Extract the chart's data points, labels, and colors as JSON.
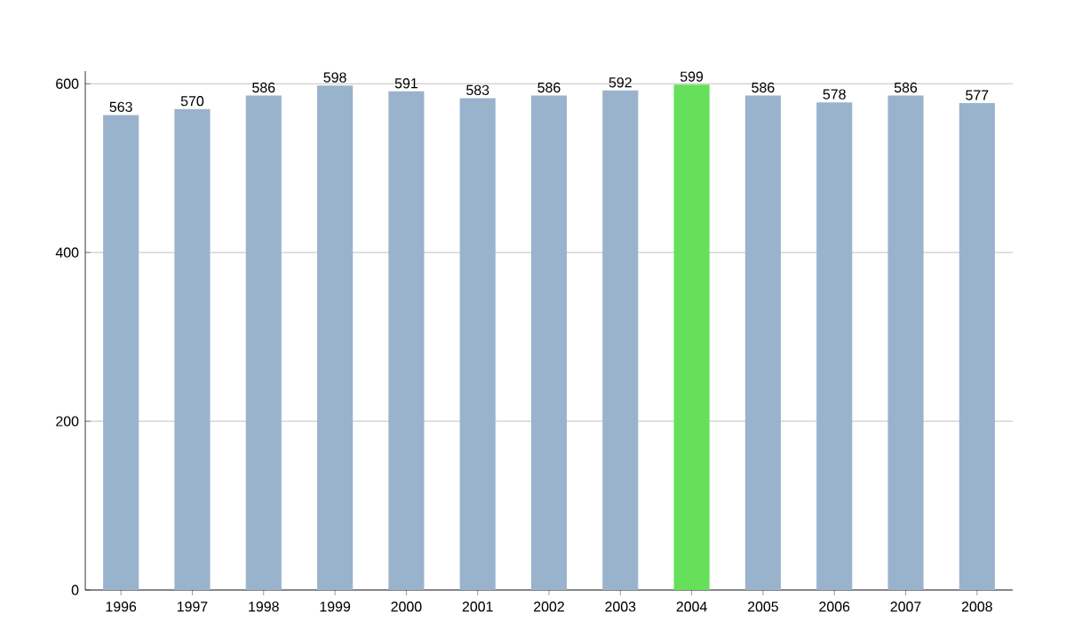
{
  "chart_data": {
    "type": "bar",
    "categories": [
      "1996",
      "1997",
      "1998",
      "1999",
      "2000",
      "2001",
      "2002",
      "2003",
      "2004",
      "2005",
      "2006",
      "2007",
      "2008"
    ],
    "values": [
      563,
      570,
      586,
      598,
      591,
      583,
      586,
      592,
      599,
      586,
      578,
      586,
      577
    ],
    "colors": [
      "#9ab3cc",
      "#9ab3cc",
      "#9ab3cc",
      "#9ab3cc",
      "#9ab3cc",
      "#9ab3cc",
      "#9ab3cc",
      "#9ab3cc",
      "#66e05a",
      "#9ab3cc",
      "#9ab3cc",
      "#9ab3cc",
      "#9ab3cc"
    ],
    "ylim": [
      0,
      615
    ],
    "yticks": [
      0,
      200,
      400,
      600
    ],
    "grid": "y",
    "data_labels": true
  }
}
